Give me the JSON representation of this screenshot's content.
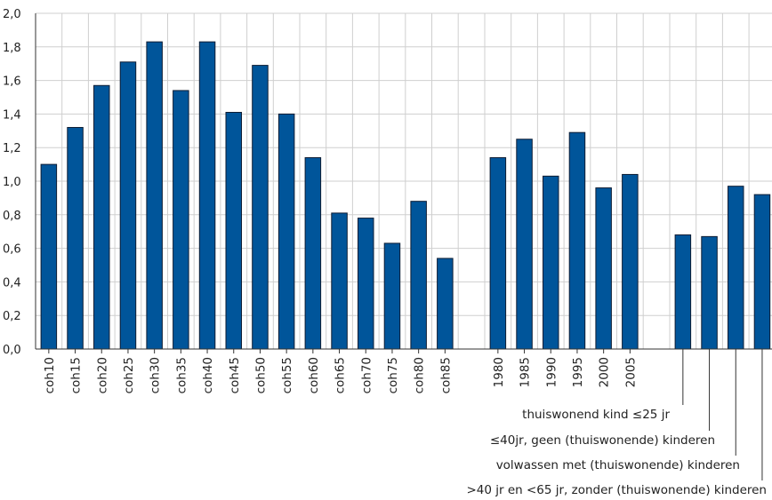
{
  "chart_data": {
    "type": "bar",
    "title": "",
    "xlabel": "",
    "ylabel": "",
    "ylim": [
      0,
      2.0
    ],
    "yticks": [
      "0,0",
      "0,2",
      "0,4",
      "0,6",
      "0,8",
      "1,0",
      "1,2",
      "1,4",
      "1,6",
      "1,8",
      "2,0"
    ],
    "grid": true,
    "bar_color": "#00559a",
    "groups": [
      {
        "categories": [
          "coh10",
          "coh15",
          "coh20",
          "coh25",
          "coh30",
          "coh35",
          "coh40",
          "coh45",
          "coh50",
          "coh55",
          "coh60",
          "coh65",
          "coh70",
          "coh75",
          "coh80",
          "coh85"
        ],
        "values": [
          1.1,
          1.32,
          1.57,
          1.71,
          1.83,
          1.54,
          1.83,
          1.41,
          1.69,
          1.4,
          1.14,
          0.81,
          0.78,
          0.63,
          0.88,
          0.54
        ]
      },
      {
        "categories": [
          "1980",
          "1985",
          "1990",
          "1995",
          "2000",
          "2005"
        ],
        "values": [
          1.14,
          1.25,
          1.03,
          1.29,
          0.96,
          1.04
        ]
      },
      {
        "categories": [
          "",
          "",
          "",
          ""
        ],
        "values": [
          0.68,
          0.67,
          0.97,
          0.92
        ]
      }
    ],
    "annotations": [
      "thuiswonend kind ≤25 jr",
      "≤40jr, geen (thuiswonende) kinderen",
      "volwassen met (thuiswonende) kinderen",
      ">40 jr en <65 jr, zonder (thuiswonende) kinderen"
    ]
  }
}
